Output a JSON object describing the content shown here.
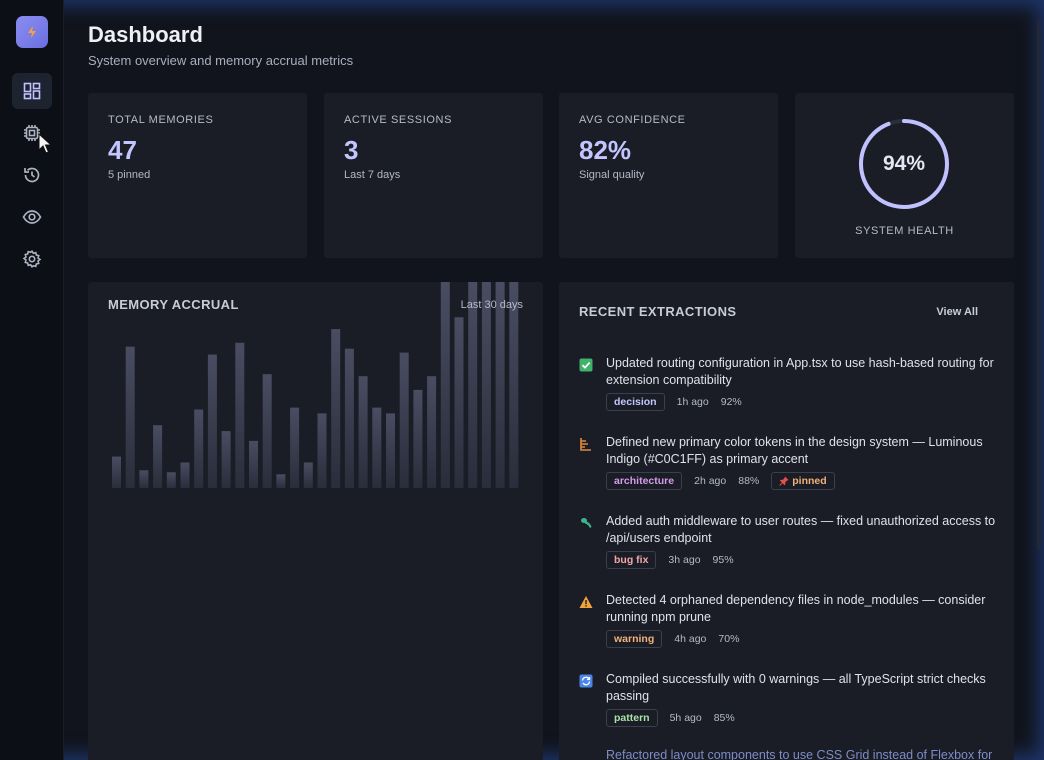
{
  "page": {
    "title": "Dashboard",
    "subtitle": "System overview and memory accrual metrics"
  },
  "sidebar": {
    "items": [
      {
        "name": "dashboard",
        "icon": "dashboard-icon",
        "active": true
      },
      {
        "name": "memory",
        "icon": "chip-icon",
        "active": false
      },
      {
        "name": "history",
        "icon": "history-icon",
        "active": false
      },
      {
        "name": "watch",
        "icon": "eye-icon",
        "active": false
      },
      {
        "name": "settings",
        "icon": "gear-icon",
        "active": false
      }
    ]
  },
  "stats": [
    {
      "label": "TOTAL MEMORIES",
      "value": "47",
      "sub": "5 pinned"
    },
    {
      "label": "ACTIVE SESSIONS",
      "value": "3",
      "sub": "Last 7 days"
    },
    {
      "label": "AVG CONFIDENCE",
      "value": "82%",
      "sub": "Signal quality"
    }
  ],
  "health": {
    "value": "94%",
    "fraction": 0.94,
    "label": "SYSTEM HEALTH"
  },
  "accrual": {
    "title": "MEMORY ACCRUAL",
    "range": "Last 30 days"
  },
  "chart_data": {
    "type": "bar",
    "title": "MEMORY ACCRUAL",
    "values": [
      16,
      72,
      9,
      32,
      8,
      13,
      40,
      68,
      29,
      74,
      24,
      58,
      7,
      41,
      13,
      38,
      81,
      71,
      57,
      41,
      38,
      69,
      50,
      57,
      105,
      87,
      105,
      105,
      105,
      105
    ],
    "ylim": [
      0,
      105
    ],
    "grid": false,
    "legend": "none"
  },
  "extractions": {
    "title": "RECENT EXTRACTIONS",
    "view_all": "View All",
    "items": [
      {
        "icon": "check-icon",
        "text": "Updated routing configuration in App.tsx to use hash-based routing for extension compatibility",
        "tag": "decision",
        "tag_class": "decision",
        "time": "1h ago",
        "confidence": "92%"
      },
      {
        "icon": "architecture-icon",
        "text": "Defined new primary color tokens in the design system — Luminous Indigo (#C0C1FF) as primary accent",
        "tag": "architecture",
        "tag_class": "architecture",
        "time": "2h ago",
        "confidence": "88%",
        "pinned": "pinned"
      },
      {
        "icon": "bug-icon",
        "text": "Added auth middleware to user routes — fixed unauthorized access to /api/users endpoint",
        "tag": "bug fix",
        "tag_class": "bugfix",
        "time": "3h ago",
        "confidence": "95%"
      },
      {
        "icon": "warning-icon",
        "text": "Detected 4 orphaned dependency files in node_modules — consider running npm prune",
        "tag": "warning",
        "tag_class": "warning",
        "time": "4h ago",
        "confidence": "70%"
      },
      {
        "icon": "refresh-icon",
        "text": "Compiled successfully with 0 warnings — all TypeScript strict checks passing",
        "tag": "pattern",
        "tag_class": "pattern",
        "time": "5h ago",
        "confidence": "85%"
      }
    ],
    "partial": "Refactored layout components to use CSS Grid instead of Flexbox for"
  },
  "colors": {
    "accent": "#C0C1FF",
    "background": "#11141c",
    "card": "#1a1d26",
    "check": "#3fb36a",
    "warning": "#f0a43a",
    "refresh": "#4a86e8"
  }
}
